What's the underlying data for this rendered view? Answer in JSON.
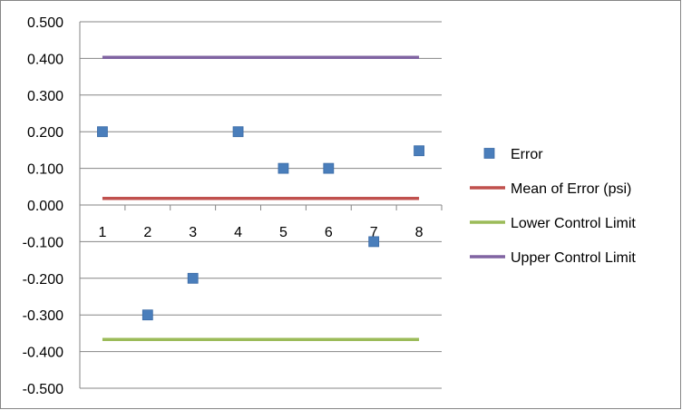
{
  "chart_data": {
    "type": "scatter",
    "title": "",
    "xlabel": "",
    "ylabel": "",
    "categories": [
      "1",
      "2",
      "3",
      "4",
      "5",
      "6",
      "7",
      "8"
    ],
    "ylim": [
      -0.5,
      0.5
    ],
    "y_ticks": [
      "0.500",
      "0.400",
      "0.300",
      "0.200",
      "0.100",
      "0.000",
      "-0.100",
      "-0.200",
      "-0.300",
      "-0.400",
      "-0.500"
    ],
    "grid": "horizontal",
    "legend_position": "right",
    "series": [
      {
        "name": "Error",
        "kind": "markers",
        "marker": "square",
        "color": "#4a7ebb",
        "values": [
          0.2,
          -0.3,
          -0.2,
          0.2,
          0.1,
          0.1,
          -0.1,
          0.148
        ]
      },
      {
        "name": "Mean of Error (psi)",
        "kind": "line",
        "color": "#c0504d",
        "values": [
          0.018,
          0.018,
          0.018,
          0.018,
          0.018,
          0.018,
          0.018,
          0.018
        ]
      },
      {
        "name": "Lower Control Limit",
        "kind": "line",
        "color": "#9bbb59",
        "values": [
          -0.367,
          -0.367,
          -0.367,
          -0.367,
          -0.367,
          -0.367,
          -0.367,
          -0.367
        ]
      },
      {
        "name": "Upper Control Limit",
        "kind": "line",
        "color": "#8064a2",
        "values": [
          0.403,
          0.403,
          0.403,
          0.403,
          0.403,
          0.403,
          0.403,
          0.403
        ]
      }
    ]
  }
}
